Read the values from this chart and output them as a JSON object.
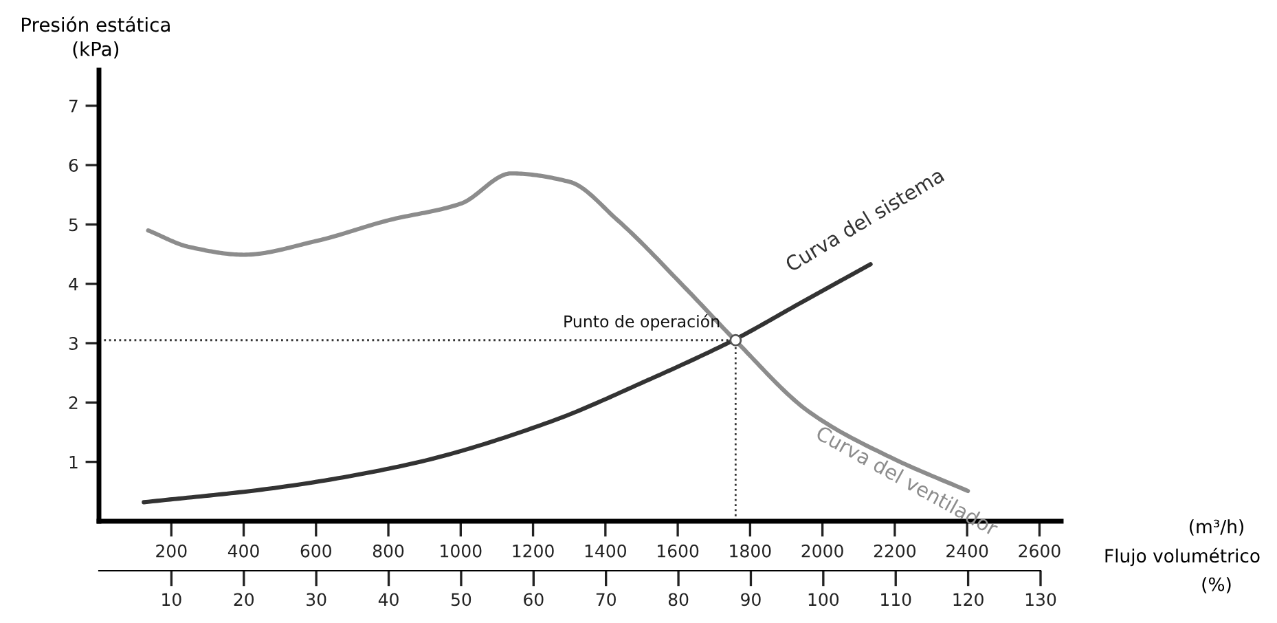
{
  "chart_data": {
    "type": "line",
    "ylabel": "Presión estática\n(kPa)",
    "xlim": [
      0,
      2660
    ],
    "xticks": [
      200,
      400,
      600,
      800,
      1000,
      1200,
      1400,
      1600,
      1800,
      2000,
      2200,
      2400,
      2600
    ],
    "x2lim": [
      0,
      130
    ],
    "x2ticks": [
      10,
      20,
      30,
      40,
      50,
      60,
      70,
      80,
      90,
      100,
      110,
      120,
      130
    ],
    "ylim": [
      0,
      7.6
    ],
    "yticks": [
      1,
      2,
      3,
      4,
      5,
      6,
      7
    ],
    "grid": false,
    "legend": false,
    "marker": "none",
    "line_style": "solid",
    "series": [
      {
        "name": "Curva del ventilador",
        "color": "#8c8c8c",
        "x": [
          136,
          250,
          400,
          600,
          800,
          1000,
          1140,
          1300,
          1434,
          1624,
          1757,
          1966,
          2194,
          2402
        ],
        "values": [
          4.9,
          4.62,
          4.49,
          4.72,
          5.07,
          5.35,
          5.86,
          5.72,
          5.07,
          3.91,
          3.06,
          1.83,
          1.06,
          0.51
        ]
      },
      {
        "name": "Curva del sistema",
        "color": "#333333",
        "x": [
          124,
          485,
          865,
          1245,
          1511,
          1757,
          1940,
          2133
        ],
        "values": [
          0.32,
          0.56,
          0.97,
          1.67,
          2.36,
          3.06,
          3.68,
          4.33
        ]
      },
      {
        "type": "scatter",
        "marker": "circle",
        "color": "#ffffff",
        "x": [
          1760
        ],
        "values": [
          3.05
        ]
      }
    ],
    "ref_lines": [
      {
        "axis": "y",
        "value": 3.05,
        "line_style": "dotted",
        "color": "#333333"
      },
      {
        "axis": "x",
        "value": 1760,
        "line_style": "dotted",
        "color": "#333333"
      }
    ],
    "annotations": [
      {
        "text": "Punto de operación",
        "x": 1760,
        "y": 3.05
      },
      "(m³/h)",
      "Flujo volumétrico",
      "(%)"
    ]
  }
}
